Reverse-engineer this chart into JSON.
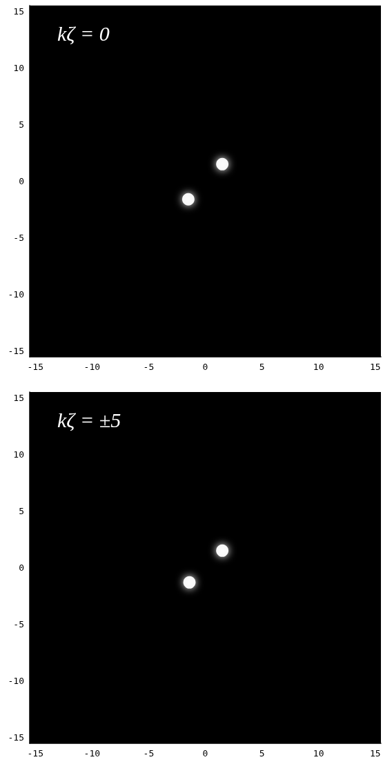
{
  "chart_data": [
    {
      "type": "scatter",
      "title": "kζ = 0",
      "series": [
        {
          "color": "#ffffff",
          "x": [
            1.5,
            -1.5
          ],
          "values": [
            1.5,
            -1.6
          ]
        }
      ],
      "xlim": [
        -15.5,
        15.5
      ],
      "ylim": [
        -15.5,
        15.5
      ],
      "xticks": [
        -15,
        -10,
        -5,
        0,
        5,
        10,
        15
      ],
      "yticks": [
        -15,
        -10,
        -5,
        0,
        5,
        10,
        15
      ],
      "grid": false,
      "marker": "circle"
    },
    {
      "type": "scatter",
      "title": "kζ = ±5",
      "series": [
        {
          "color": "#ffffff",
          "x": [
            1.5,
            -1.4
          ],
          "values": [
            1.5,
            -1.3
          ]
        }
      ],
      "xlim": [
        -15.5,
        15.5
      ],
      "ylim": [
        -15.5,
        15.5
      ],
      "xticks": [
        -15,
        -10,
        -5,
        0,
        5,
        10,
        15
      ],
      "yticks": [
        -15,
        -10,
        -5,
        0,
        5,
        10,
        15
      ],
      "grid": false,
      "marker": "circle"
    }
  ]
}
